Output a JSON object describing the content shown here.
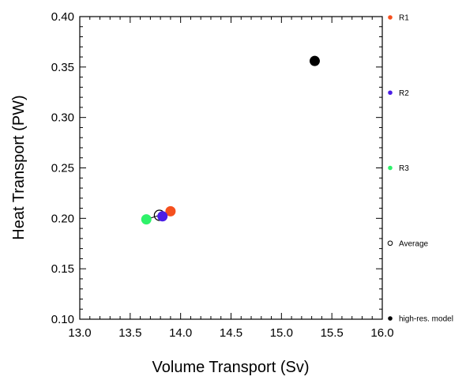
{
  "chart_data": {
    "type": "scatter",
    "title": "",
    "xlabel": "Volume Transport (Sv)",
    "ylabel": "Heat Transport (PW)",
    "xlim": [
      13.0,
      16.0
    ],
    "ylim": [
      0.1,
      0.4
    ],
    "x_ticks": [
      "13.0",
      "13.5",
      "14.0",
      "14.5",
      "15.0",
      "15.5",
      "16.0"
    ],
    "y_ticks": [
      "0.10",
      "0.15",
      "0.20",
      "0.25",
      "0.30",
      "0.35",
      "0.40"
    ],
    "grid": false,
    "legend_position": "right",
    "series": [
      {
        "name": "R1",
        "color": "#f5501e",
        "marker": "filled-circle",
        "x": [
          13.9
        ],
        "y": [
          0.207
        ]
      },
      {
        "name": "R2",
        "color": "#4b1ee6",
        "marker": "filled-circle",
        "x": [
          13.82
        ],
        "y": [
          0.202
        ]
      },
      {
        "name": "R3",
        "color": "#2ef26a",
        "marker": "filled-circle",
        "x": [
          13.66
        ],
        "y": [
          0.199
        ]
      },
      {
        "name": "Average",
        "color": "#000000",
        "marker": "open-circle",
        "x": [
          13.79
        ],
        "y": [
          0.203
        ]
      },
      {
        "name": "high-res. model",
        "color": "#000000",
        "marker": "filled-circle",
        "x": [
          15.33
        ],
        "y": [
          0.356
        ]
      }
    ]
  }
}
